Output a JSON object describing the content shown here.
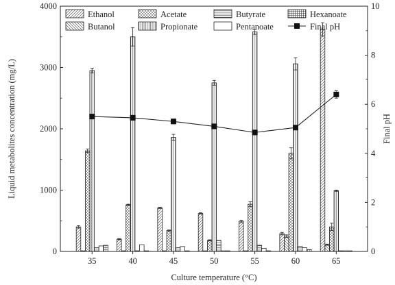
{
  "chart_data": {
    "type": "bar",
    "xlabel": "Culture temperature (°C)",
    "ylabel": "Liquid metabolites concentration (mg/L)",
    "y2label": "Final pH",
    "ylim": [
      0,
      4000
    ],
    "y2lim": [
      0,
      10
    ],
    "yticks": [
      "0",
      "1000",
      "2000",
      "3000",
      "4000"
    ],
    "y2ticks": [
      "0",
      "2",
      "4",
      "6",
      "8",
      "10"
    ],
    "categories": [
      "35",
      "40",
      "45",
      "50",
      "55",
      "60",
      "65"
    ],
    "legend_position": "top",
    "series": [
      {
        "name": "Ethanol",
        "pattern": "diag-right",
        "values": [
          400,
          200,
          710,
          620,
          490,
          290,
          3620
        ],
        "errors": [
          20,
          10,
          10,
          10,
          20,
          20,
          110
        ]
      },
      {
        "name": "Butanol",
        "pattern": "diag-left",
        "values": [
          10,
          10,
          10,
          10,
          10,
          250,
          110
        ],
        "errors": [
          0,
          0,
          0,
          0,
          0,
          20,
          10
        ]
      },
      {
        "name": "Acetate",
        "pattern": "crosshatch",
        "values": [
          1640,
          760,
          340,
          180,
          770,
          1600,
          400
        ],
        "errors": [
          30,
          10,
          10,
          10,
          40,
          90,
          60
        ]
      },
      {
        "name": "Propionate",
        "pattern": "vertical",
        "values": [
          2950,
          3500,
          1860,
          2750,
          3580,
          3060,
          990
        ],
        "errors": [
          40,
          150,
          50,
          40,
          40,
          100,
          10
        ]
      },
      {
        "name": "Butyrate",
        "pattern": "horizontal",
        "values": [
          60,
          10,
          60,
          180,
          100,
          80,
          10
        ],
        "errors": [
          0,
          0,
          0,
          0,
          0,
          0,
          0
        ]
      },
      {
        "name": "Pentanoate",
        "pattern": "blank",
        "values": [
          90,
          110,
          80,
          10,
          50,
          60,
          10
        ],
        "errors": [
          0,
          0,
          0,
          0,
          0,
          0,
          0
        ]
      },
      {
        "name": "Hexanoate",
        "pattern": "grid",
        "values": [
          100,
          10,
          10,
          10,
          10,
          30,
          10
        ],
        "errors": [
          0,
          0,
          0,
          0,
          0,
          0,
          0
        ]
      }
    ],
    "ph_series": {
      "name": "Final pH",
      "values": [
        5.5,
        5.45,
        5.3,
        5.1,
        4.85,
        5.05,
        6.4
      ],
      "errors": [
        0.1,
        0.1,
        0.1,
        0.1,
        0.05,
        0.05,
        0.15
      ]
    }
  }
}
